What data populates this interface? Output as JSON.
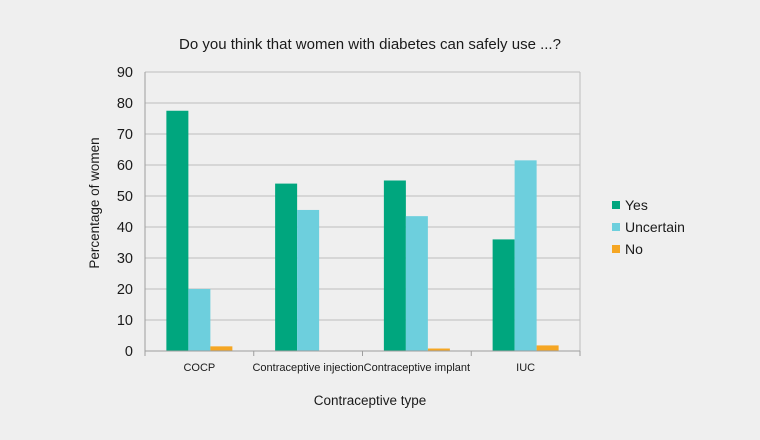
{
  "chart_data": {
    "type": "bar",
    "title": "Do you think that women with diabetes can safely use ...?",
    "xlabel": "Contraceptive type",
    "ylabel": "Percentage of women",
    "ylim": [
      0,
      90
    ],
    "yticks": [
      0,
      10,
      20,
      30,
      40,
      50,
      60,
      70,
      80,
      90
    ],
    "grid": true,
    "legend_position": "right",
    "categories": [
      "COCP",
      "Contraceptive injection",
      "Contraceptive implant",
      "IUC"
    ],
    "series": [
      {
        "name": "Yes",
        "color": "#00a67e",
        "values": [
          77.5,
          54,
          55,
          36
        ]
      },
      {
        "name": "Uncertain",
        "color": "#6dcfdd",
        "values": [
          20,
          45.5,
          43.5,
          61.5
        ]
      },
      {
        "name": "No",
        "color": "#f5a623",
        "values": [
          1.5,
          0,
          0.8,
          1.8
        ]
      }
    ]
  }
}
